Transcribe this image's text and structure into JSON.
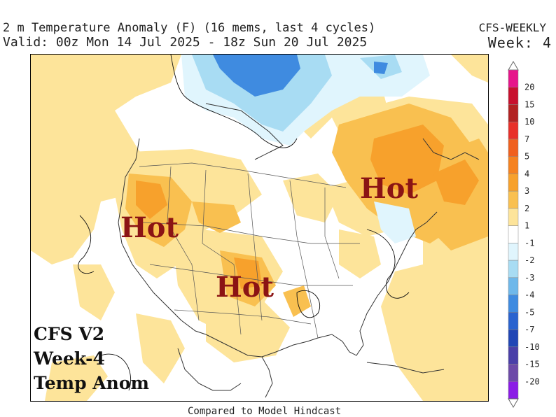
{
  "header": {
    "title": "2 m Temperature Anomaly (F) (16 mems, last 4 cycles)",
    "valid": "Valid: 00z Mon 14 Jul 2025 - 18z Sun 20 Jul 2025",
    "model": "CFS-WEEKLY",
    "week": "Week: 4"
  },
  "annotations": {
    "hot_west": "Hot",
    "hot_south": "Hot",
    "hot_east": "Hot",
    "cfs_line1": "CFS V2",
    "cfs_line2": "Week-4",
    "cfs_line3": "Temp Anom"
  },
  "footer": "Compared to Model Hindcast",
  "colorbar": {
    "labels": [
      "20",
      "15",
      "10",
      "7",
      "5",
      "4",
      "3",
      "2",
      "1",
      "-1",
      "-2",
      "-3",
      "-4",
      "-5",
      "-7",
      "-10",
      "-15",
      "-20"
    ],
    "colors": [
      "#e6158a",
      "#c8102e",
      "#b22222",
      "#e8302a",
      "#f0601e",
      "#f58220",
      "#f7a12c",
      "#f9c050",
      "#fde49a",
      "#ffffff",
      "#e0f5fd",
      "#a8dcf3",
      "#6fb8ea",
      "#3f8be0",
      "#2a63cf",
      "#2046b5",
      "#4a3fa8",
      "#6d4aa8",
      "#8b1ce6"
    ]
  },
  "colors": {
    "anomaly_light_warm": "#fde49a",
    "anomaly_warm": "#f9c050",
    "anomaly_hot": "#f7a12c",
    "anomaly_light_cool": "#e0f5fd",
    "anomaly_cool": "#a8dcf3",
    "anomaly_cold": "#3f8be0",
    "hot_text": "#8b1414"
  }
}
